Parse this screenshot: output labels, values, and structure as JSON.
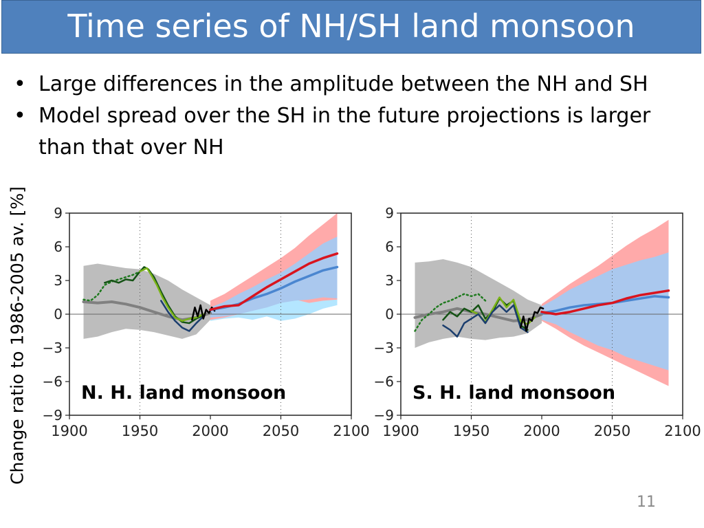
{
  "slide": {
    "title": "Time series of NH/SH land monsoon",
    "bullets": [
      "Large differences in the amplitude between the NH and SH",
      "Model spread over the SH in the future projections is larger than that over NH"
    ],
    "bullet_char": "•",
    "slide_number": "11"
  },
  "colors": {
    "title_bg": "#4f81bd",
    "model_spread_historical": "#bdbdbd",
    "model_mean_historical": "#808080",
    "rcp_high_spread": "#ffaaaa",
    "rcp_low_spread": "#aac8ee",
    "rcp_low_spread_light": "#b4e6ff",
    "rcp_high_mean": "#d9141e",
    "rcp_low_mean": "#4a86d0",
    "obs_dotted": "#1f7a1f",
    "obs_darkgreen": "#145214",
    "obs_lightgreen": "#7ab317",
    "obs_navy": "#1b3e6e",
    "obs_black": "#000000"
  },
  "chart_data": [
    {
      "type": "line",
      "label": "N. H. land monsoon",
      "ylabel": "Change ratio to 1986-2005 av. [%]",
      "xlim": [
        1900,
        2100
      ],
      "ylim": [
        -9,
        9
      ],
      "xticks": [
        "1900",
        "1950",
        "2000",
        "2050",
        "2100"
      ],
      "yticks": [
        "−9",
        "−6",
        "−3",
        "0",
        "3",
        "6",
        "9"
      ],
      "vgrid": [
        1950,
        2050
      ],
      "hline": 0,
      "bands": [
        {
          "color": "#bdbdbd",
          "x": [
            1910,
            1920,
            1930,
            1940,
            1950,
            1960,
            1970,
            1980,
            1990,
            2000
          ],
          "lower": [
            -2.2,
            -2.0,
            -1.6,
            -1.3,
            -1.4,
            -1.6,
            -1.9,
            -2.2,
            -1.8,
            -0.5
          ],
          "upper": [
            4.3,
            4.5,
            4.3,
            4.1,
            4.0,
            3.6,
            3.0,
            2.2,
            1.5,
            0.8
          ]
        },
        {
          "color": "#b4e6ff",
          "x": [
            2000,
            2010,
            2020,
            2030,
            2040,
            2050,
            2060,
            2070,
            2080,
            2090
          ],
          "lower": [
            -0.6,
            -0.4,
            -0.3,
            -0.5,
            -0.2,
            -0.6,
            -0.4,
            0.0,
            0.5,
            0.8
          ],
          "upper": [
            0.8,
            1.3,
            2.0,
            2.6,
            3.2,
            3.8,
            4.6,
            5.6,
            6.5,
            7.2
          ]
        },
        {
          "color": "#ffaaaa",
          "x": [
            2000,
            2010,
            2020,
            2030,
            2040,
            2050,
            2060,
            2070,
            2080,
            2090
          ],
          "lower": [
            -0.5,
            -0.3,
            0.0,
            0.5,
            0.9,
            1.2,
            1.3,
            1.0,
            1.2,
            1.3
          ],
          "upper": [
            1.2,
            1.8,
            2.6,
            3.4,
            4.2,
            5.0,
            5.9,
            7.0,
            8.0,
            9.0
          ]
        },
        {
          "color": "#aac8ee",
          "x": [
            2000,
            2010,
            2020,
            2030,
            2040,
            2050,
            2060,
            2070,
            2080,
            2090
          ],
          "lower": [
            -0.3,
            -0.2,
            0.0,
            0.3,
            0.6,
            1.0,
            1.2,
            1.3,
            1.5,
            1.4
          ],
          "upper": [
            0.6,
            1.1,
            1.8,
            2.4,
            3.1,
            3.7,
            4.5,
            5.4,
            6.3,
            6.9
          ]
        }
      ],
      "lines": [
        {
          "color": "#808080",
          "width": 4,
          "x": [
            1910,
            1920,
            1930,
            1940,
            1950,
            1960,
            1970,
            1980,
            1990,
            2000
          ],
          "y": [
            1.1,
            1.0,
            1.1,
            0.9,
            0.6,
            0.2,
            -0.2,
            -0.5,
            -0.3,
            0.1
          ]
        },
        {
          "color": "#1f7a1f",
          "width": 2.5,
          "dash": "2,4",
          "x": [
            1910,
            1915,
            1920,
            1925,
            1930,
            1935,
            1940,
            1945,
            1950
          ],
          "y": [
            1.3,
            1.2,
            1.7,
            2.6,
            2.9,
            3.1,
            3.3,
            3.5,
            3.8
          ]
        },
        {
          "color": "#145214",
          "width": 2.5,
          "x": [
            1925,
            1930,
            1935,
            1940,
            1945,
            1950,
            1953,
            1956,
            1960,
            1965,
            1970,
            1975,
            1980,
            1985,
            1990,
            1995
          ],
          "y": [
            2.8,
            3.0,
            2.8,
            3.1,
            3.0,
            3.8,
            4.2,
            4.0,
            3.3,
            2.0,
            0.8,
            -0.2,
            -0.7,
            -0.8,
            -0.4,
            -0.1
          ]
        },
        {
          "color": "#7ab317",
          "width": 2.5,
          "x": [
            1950,
            1955,
            1958,
            1962,
            1966,
            1970,
            1975,
            1980,
            1985,
            1990,
            1995
          ],
          "y": [
            3.8,
            4.1,
            3.5,
            2.6,
            1.5,
            0.6,
            -0.3,
            -0.6,
            -0.4,
            -0.3,
            0.0
          ]
        },
        {
          "color": "#1b3e6e",
          "width": 2.5,
          "x": [
            1965,
            1970,
            1975,
            1980,
            1985,
            1990,
            1995
          ],
          "y": [
            1.2,
            0.2,
            -0.6,
            -1.2,
            -1.5,
            -0.8,
            -0.2
          ]
        },
        {
          "color": "#000000",
          "width": 2.5,
          "x": [
            1987,
            1989,
            1991,
            1993,
            1995,
            1997,
            1999,
            2001,
            2003
          ],
          "y": [
            -0.5,
            0.6,
            -0.2,
            0.8,
            -0.4,
            0.4,
            0.1,
            0.6,
            0.3
          ]
        },
        {
          "color": "#4a86d0",
          "width": 3.5,
          "x": [
            2000,
            2010,
            2020,
            2030,
            2040,
            2050,
            2060,
            2070,
            2080,
            2090
          ],
          "y": [
            0.4,
            0.6,
            0.9,
            1.4,
            1.8,
            2.3,
            2.9,
            3.4,
            3.9,
            4.2
          ]
        },
        {
          "color": "#d9141e",
          "width": 3.5,
          "x": [
            2000,
            2010,
            2020,
            2030,
            2040,
            2050,
            2060,
            2070,
            2080,
            2090
          ],
          "y": [
            0.4,
            0.7,
            0.8,
            1.6,
            2.4,
            3.1,
            3.8,
            4.5,
            5.0,
            5.4
          ]
        }
      ]
    },
    {
      "type": "line",
      "label": "S. H. land monsoon",
      "xlim": [
        1900,
        2100
      ],
      "ylim": [
        -9,
        9
      ],
      "xticks": [
        "1900",
        "1950",
        "2000",
        "2050",
        "2100"
      ],
      "yticks": [
        "−9",
        "−6",
        "−3",
        "0",
        "3",
        "6",
        "9"
      ],
      "vgrid": [
        1950,
        2050
      ],
      "hline": 0,
      "bands": [
        {
          "color": "#bdbdbd",
          "x": [
            1910,
            1920,
            1930,
            1940,
            1950,
            1960,
            1970,
            1980,
            1990,
            2000
          ],
          "lower": [
            -3.0,
            -2.5,
            -2.2,
            -2.0,
            -2.2,
            -2.3,
            -2.1,
            -2.0,
            -1.7,
            -0.8
          ],
          "upper": [
            4.6,
            4.7,
            4.9,
            4.6,
            4.2,
            3.5,
            2.8,
            2.1,
            1.3,
            0.8
          ]
        },
        {
          "color": "#b4e6ff",
          "x": [
            2000,
            2010,
            2020,
            2030,
            2040,
            2050,
            2060,
            2070,
            2080,
            2090
          ],
          "lower": [
            -0.6,
            -1.0,
            -1.8,
            -2.4,
            -3.0,
            -3.4,
            -4.0,
            -4.5,
            -5.0,
            -5.5
          ],
          "upper": [
            0.8,
            1.6,
            2.4,
            3.0,
            3.6,
            4.2,
            4.6,
            5.0,
            5.4,
            5.8
          ]
        },
        {
          "color": "#ffaaaa",
          "x": [
            2000,
            2010,
            2020,
            2030,
            2040,
            2050,
            2060,
            2070,
            2080,
            2090
          ],
          "lower": [
            -0.6,
            -1.3,
            -2.1,
            -2.8,
            -3.4,
            -4.0,
            -4.6,
            -5.2,
            -5.8,
            -6.4
          ],
          "upper": [
            0.9,
            1.8,
            2.7,
            3.5,
            4.3,
            5.2,
            6.1,
            6.9,
            7.6,
            8.4
          ]
        },
        {
          "color": "#aac8ee",
          "x": [
            2000,
            2010,
            2020,
            2030,
            2040,
            2050,
            2060,
            2070,
            2080,
            2090
          ],
          "lower": [
            -0.5,
            -0.9,
            -1.6,
            -2.2,
            -2.8,
            -3.2,
            -3.8,
            -4.2,
            -4.6,
            -5.0
          ],
          "upper": [
            0.7,
            1.4,
            2.2,
            2.8,
            3.4,
            4.0,
            4.4,
            4.8,
            5.1,
            5.5
          ]
        }
      ],
      "lines": [
        {
          "color": "#808080",
          "width": 4,
          "x": [
            1910,
            1920,
            1930,
            1940,
            1950,
            1960,
            1970,
            1980,
            1990,
            2000
          ],
          "y": [
            -0.3,
            0.0,
            0.2,
            0.5,
            0.2,
            0.0,
            -0.3,
            -0.6,
            -0.5,
            0.0
          ]
        },
        {
          "color": "#1f7a1f",
          "width": 2.5,
          "dash": "2,4",
          "x": [
            1910,
            1915,
            1920,
            1925,
            1930,
            1935,
            1940,
            1945,
            1950,
            1955,
            1960
          ],
          "y": [
            -1.5,
            -0.5,
            0.0,
            0.6,
            1.0,
            1.2,
            1.5,
            1.8,
            1.6,
            1.8,
            1.2
          ]
        },
        {
          "color": "#145214",
          "width": 2.5,
          "x": [
            1930,
            1935,
            1940,
            1945,
            1950,
            1955,
            1960,
            1965,
            1970,
            1975,
            1980,
            1985,
            1990
          ],
          "y": [
            -0.5,
            0.2,
            -0.2,
            0.5,
            0.2,
            0.8,
            -0.4,
            0.2,
            1.4,
            0.8,
            1.2,
            -1.0,
            -1.4
          ]
        },
        {
          "color": "#7ab317",
          "width": 2.5,
          "x": [
            1950,
            1955,
            1960,
            1965,
            1970,
            1975,
            1980,
            1985,
            1990,
            1995
          ],
          "y": [
            0.3,
            0.0,
            -0.7,
            0.4,
            1.5,
            0.6,
            1.3,
            -0.6,
            -0.9,
            -0.3
          ]
        },
        {
          "color": "#1b3e6e",
          "width": 2.5,
          "x": [
            1930,
            1935,
            1940,
            1945,
            1950,
            1955,
            1960,
            1965,
            1970,
            1975,
            1980,
            1985,
            1990
          ],
          "y": [
            -1.0,
            -1.4,
            -2.0,
            -0.8,
            -0.4,
            0.0,
            -0.8,
            0.2,
            0.8,
            0.2,
            0.8,
            -1.2,
            -1.6
          ]
        },
        {
          "color": "#000000",
          "width": 2.5,
          "x": [
            1985,
            1987,
            1989,
            1991,
            1993,
            1995,
            1997,
            1999,
            2001
          ],
          "y": [
            -1.2,
            -0.2,
            -1.5,
            -0.4,
            -0.6,
            0.2,
            0.1,
            0.6,
            0.5
          ]
        },
        {
          "color": "#4a86d0",
          "width": 3.5,
          "x": [
            2000,
            2010,
            2020,
            2030,
            2040,
            2050,
            2060,
            2070,
            2080,
            2090
          ],
          "y": [
            0.1,
            0.3,
            0.6,
            0.8,
            0.9,
            1.0,
            1.2,
            1.4,
            1.6,
            1.5
          ]
        },
        {
          "color": "#d9141e",
          "width": 3.5,
          "x": [
            2000,
            2010,
            2020,
            2030,
            2040,
            2050,
            2060,
            2070,
            2080,
            2090
          ],
          "y": [
            0.2,
            0.0,
            0.2,
            0.5,
            0.8,
            1.0,
            1.4,
            1.7,
            1.9,
            2.1
          ]
        }
      ]
    }
  ]
}
